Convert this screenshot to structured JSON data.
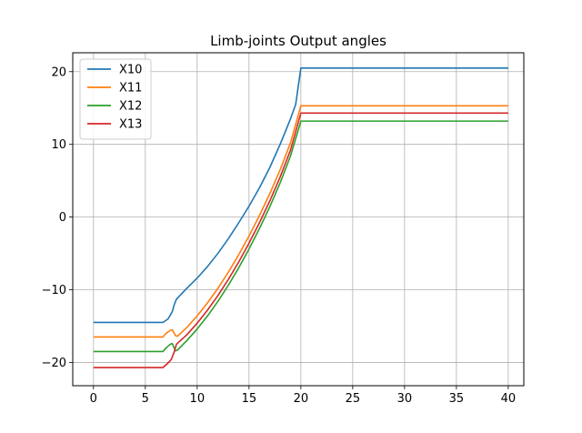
{
  "chart_data": {
    "type": "line",
    "title": "Limb-joints Output angles",
    "xlabel": "",
    "ylabel": "",
    "xlim": [
      -2,
      41.5
    ],
    "ylim": [
      -23.2,
      22.6
    ],
    "xticks": [
      0,
      5,
      10,
      15,
      20,
      25,
      30,
      35,
      40
    ],
    "yticks": [
      -20,
      -10,
      0,
      10,
      20
    ],
    "grid": true,
    "legend_position": "upper-left",
    "series": [
      {
        "name": "X10",
        "color": "#1f77b4",
        "points": [
          [
            0,
            -14.5
          ],
          [
            6.7,
            -14.5
          ],
          [
            7.2,
            -14.0
          ],
          [
            7.6,
            -13.0
          ],
          [
            7.8,
            -12.0
          ],
          [
            8.0,
            -11.3
          ],
          [
            9.0,
            -9.8
          ],
          [
            10,
            -8.4
          ],
          [
            11,
            -6.8
          ],
          [
            12,
            -5.0
          ],
          [
            13,
            -3.0
          ],
          [
            14,
            -0.8
          ],
          [
            15,
            1.5
          ],
          [
            16,
            4.0
          ],
          [
            17,
            6.8
          ],
          [
            18,
            10.0
          ],
          [
            19,
            13.5
          ],
          [
            19.5,
            15.5
          ],
          [
            20,
            20.5
          ],
          [
            40,
            20.5
          ]
        ]
      },
      {
        "name": "X11",
        "color": "#ff7f0e",
        "points": [
          [
            0,
            -16.5
          ],
          [
            6.7,
            -16.5
          ],
          [
            7.0,
            -16.0
          ],
          [
            7.4,
            -15.6
          ],
          [
            7.6,
            -15.5
          ],
          [
            7.9,
            -16.3
          ],
          [
            8.1,
            -16.4
          ],
          [
            9.0,
            -15.2
          ],
          [
            10,
            -13.6
          ],
          [
            11,
            -11.8
          ],
          [
            12,
            -9.8
          ],
          [
            13,
            -7.6
          ],
          [
            14,
            -5.2
          ],
          [
            15,
            -2.6
          ],
          [
            16,
            0.2
          ],
          [
            17,
            3.2
          ],
          [
            18,
            6.5
          ],
          [
            19,
            10.2
          ],
          [
            20,
            15.3
          ],
          [
            40,
            15.3
          ]
        ]
      },
      {
        "name": "X12",
        "color": "#2ca02c",
        "points": [
          [
            0,
            -18.5
          ],
          [
            6.7,
            -18.5
          ],
          [
            7.0,
            -18.0
          ],
          [
            7.4,
            -17.5
          ],
          [
            7.6,
            -17.4
          ],
          [
            7.9,
            -18.4
          ],
          [
            8.1,
            -18.3
          ],
          [
            9.0,
            -17.0
          ],
          [
            10,
            -15.4
          ],
          [
            11,
            -13.6
          ],
          [
            12,
            -11.6
          ],
          [
            13,
            -9.4
          ],
          [
            14,
            -7.0
          ],
          [
            15,
            -4.4
          ],
          [
            16,
            -1.6
          ],
          [
            17,
            1.4
          ],
          [
            18,
            4.7
          ],
          [
            19,
            8.4
          ],
          [
            20,
            13.2
          ],
          [
            40,
            13.2
          ]
        ]
      },
      {
        "name": "X13",
        "color": "#d62728",
        "points": [
          [
            0,
            -20.7
          ],
          [
            6.7,
            -20.7
          ],
          [
            7.1,
            -20.2
          ],
          [
            7.5,
            -19.6
          ],
          [
            7.8,
            -18.5
          ],
          [
            8.0,
            -17.5
          ],
          [
            9.0,
            -16.2
          ],
          [
            10,
            -14.6
          ],
          [
            11,
            -12.8
          ],
          [
            12,
            -10.8
          ],
          [
            13,
            -8.6
          ],
          [
            14,
            -6.2
          ],
          [
            15,
            -3.6
          ],
          [
            16,
            -0.8
          ],
          [
            17,
            2.2
          ],
          [
            18,
            5.5
          ],
          [
            19,
            9.2
          ],
          [
            20,
            14.3
          ],
          [
            40,
            14.3
          ]
        ]
      }
    ]
  }
}
